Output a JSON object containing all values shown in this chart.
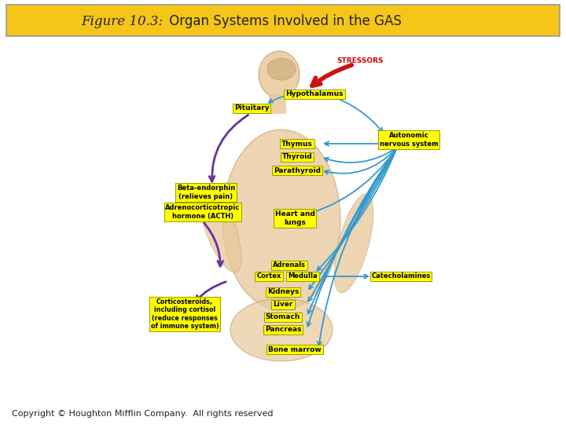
{
  "title_italic": "Figure 10.3:",
  "title_normal": " Organ Systems Involved in the GAS",
  "title_bg": "#F5C518",
  "title_border": "#999999",
  "bg_color": "#ffffff",
  "copyright_text": "Copyright © Houghton Mifflin Company.  All rights reserved",
  "yellow_box": "#FFFF00",
  "arrow_blue": "#3399CC",
  "arrow_purple": "#663399",
  "arrow_red": "#CC1111",
  "stressors_color": "#CC0000",
  "body_color": "#E8C89A",
  "labels": {
    "stressors": "STRESSORS",
    "hypothalamus": "Hypothalamus",
    "pituitary": "Pituitary",
    "autonomic": "Autonomic\nnervous system",
    "thymus": "Thymus",
    "thyroid": "Thyroid",
    "parathyroid": "Parathyroid",
    "beta": "Beta-endorphin\n(relieves pain)",
    "acth": "Adrenocorticotropic\nhormone (ACTH)",
    "heart": "Heart and\nlungs",
    "adrenals": "Adrenals",
    "cortex": "Cortex",
    "medulla": "Medulla",
    "catecholamines": "Catecholamines",
    "kidneys": "Kidneys",
    "liver": "Liver",
    "stomach": "Stomach",
    "pancreas": "Pancreas",
    "corticosteroids": "Corticosteroids,\nincluding cortisol\n(reduce responses\nof immune system)",
    "bone_marrow": "Bone marrow"
  }
}
